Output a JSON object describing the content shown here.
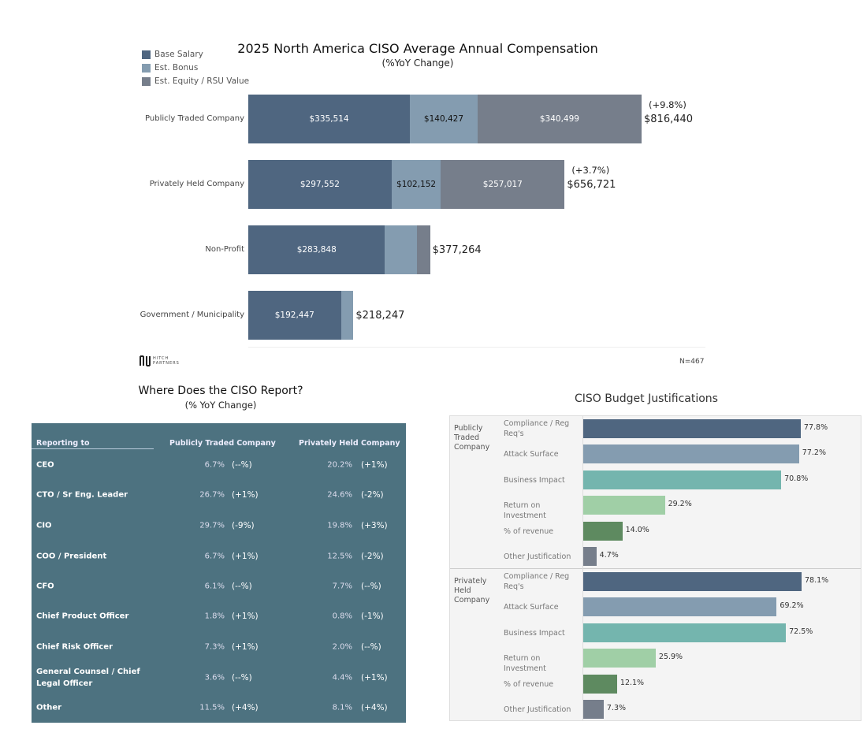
{
  "compensation": {
    "title": "2025 North America CISO Average Annual Compensation",
    "subtitle": "(%YoY Change)",
    "legend": [
      "Base Salary",
      "Est. Bonus",
      "Est. Equity / RSU Value"
    ],
    "colors": [
      "#4f6680",
      "#849cb0",
      "#767e8b"
    ],
    "footer_n": "N=467",
    "logo_text": "HITCH PARTNERS",
    "chart_data": {
      "type": "bar",
      "orientation": "horizontal",
      "stacked": true,
      "title": "2025 North America CISO Average Annual Compensation",
      "categories": [
        "Publicly Traded Company",
        "Privately Held Company",
        "Non-Profit",
        "Government / Municipality"
      ],
      "series": [
        {
          "name": "Base Salary",
          "values": [
            335514,
            297552,
            283848,
            192447
          ],
          "labels": [
            "$335,514",
            "$297,552",
            "$283,848",
            "$192,447"
          ]
        },
        {
          "name": "Est. Bonus",
          "values": [
            140427,
            102152,
            66000,
            25800
          ],
          "labels": [
            "$140,427",
            "$102,152",
            "",
            ""
          ]
        },
        {
          "name": "Est. Equity / RSU Value",
          "values": [
            340499,
            257017,
            27416,
            0
          ],
          "labels": [
            "$340,499",
            "$257,017",
            "",
            ""
          ]
        }
      ],
      "totals": [
        "$816,440",
        "$656,721",
        "$377,264",
        "$218,247"
      ],
      "yoy": [
        "(+9.8%)",
        "(+3.7%)",
        "",
        ""
      ],
      "xlim": [
        0,
        816440
      ]
    }
  },
  "reporting": {
    "title": "Where Does the CISO Report?",
    "subtitle": "(% YoY Change)",
    "headers": [
      "Reporting to",
      "Publicly Traded Company",
      "Privately Held Company"
    ],
    "rows": [
      {
        "label": "CEO",
        "pub": "6.7%",
        "pub_chg": "(--%)",
        "priv": "20.2%",
        "priv_chg": "(+1%)"
      },
      {
        "label": "CTO / Sr Eng. Leader",
        "pub": "26.7%",
        "pub_chg": "(+1%)",
        "priv": "24.6%",
        "priv_chg": "(-2%)"
      },
      {
        "label": "CIO",
        "pub": "29.7%",
        "pub_chg": "(-9%)",
        "priv": "19.8%",
        "priv_chg": "(+3%)"
      },
      {
        "label": "COO / President",
        "pub": "6.7%",
        "pub_chg": "(+1%)",
        "priv": "12.5%",
        "priv_chg": "(-2%)"
      },
      {
        "label": "CFO",
        "pub": "6.1%",
        "pub_chg": "(--%)",
        "priv": "7.7%",
        "priv_chg": "(--%)"
      },
      {
        "label": "Chief Product Officer",
        "pub": "1.8%",
        "pub_chg": "(+1%)",
        "priv": "0.8%",
        "priv_chg": "(-1%)"
      },
      {
        "label": "Chief Risk Officer",
        "pub": "7.3%",
        "pub_chg": "(+1%)",
        "priv": "2.0%",
        "priv_chg": "(--%)"
      },
      {
        "label": "General Counsel / Chief Legal Officer",
        "pub": "3.6%",
        "pub_chg": "(--%)",
        "priv": "4.4%",
        "priv_chg": "(+1%)"
      },
      {
        "label": "Other",
        "pub": "11.5%",
        "pub_chg": "(+4%)",
        "priv": "8.1%",
        "priv_chg": "(+4%)"
      }
    ]
  },
  "budget": {
    "title": "CISO Budget Justifications",
    "chart_data": {
      "type": "bar",
      "orientation": "horizontal",
      "categories": [
        "Compliance / Reg Req's",
        "Attack Surface",
        "Business Impact",
        "Return on Investment",
        "% of revenue",
        "Other Justification"
      ],
      "colors": [
        "#4f6680",
        "#849cb0",
        "#74b5ae",
        "#a0cfa6",
        "#5e8a60",
        "#767e8b"
      ],
      "groups": [
        {
          "name": "Publicly Traded Company",
          "values": [
            77.8,
            77.2,
            70.8,
            29.2,
            14.0,
            4.7
          ],
          "labels": [
            "77.8%",
            "77.2%",
            "70.8%",
            "29.2%",
            "14.0%",
            "4.7%"
          ]
        },
        {
          "name": "Privately Held Company",
          "values": [
            78.1,
            69.2,
            72.5,
            25.9,
            12.1,
            7.3
          ],
          "labels": [
            "78.1%",
            "69.2%",
            "72.5%",
            "25.9%",
            "12.1%",
            "7.3%"
          ]
        }
      ],
      "xlim": [
        0,
        80
      ]
    }
  }
}
